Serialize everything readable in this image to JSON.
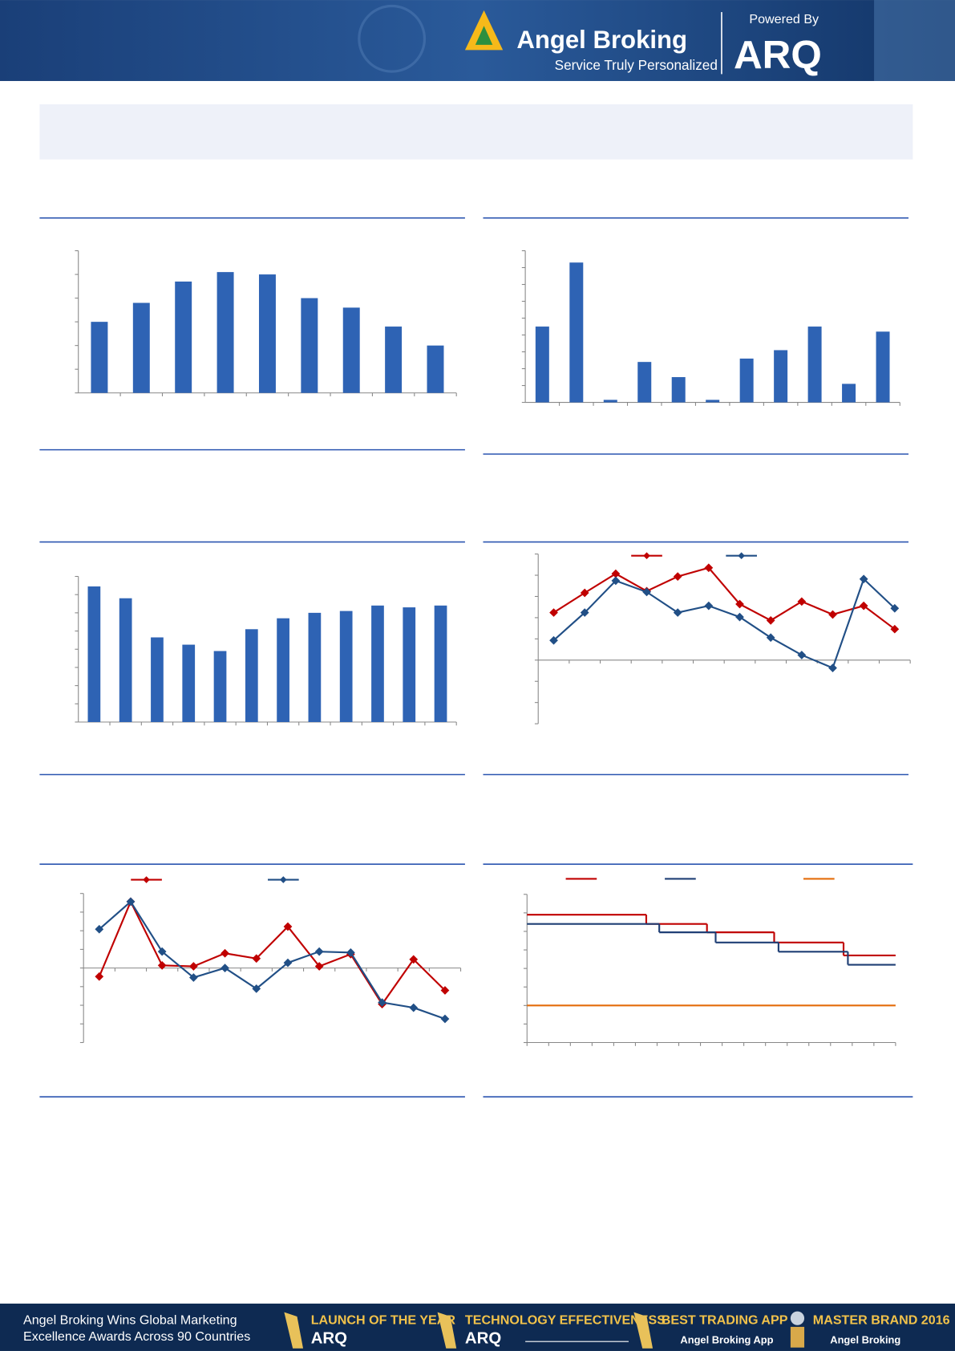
{
  "header": {
    "brand": "Angel Broking",
    "tagline": "Service Truly Personalized",
    "powered": "Powered By",
    "product": "ARQ"
  },
  "footer": {
    "headline": [
      "Angel Broking Wins Global Marketing",
      "Excellence Awards Across 90 Countries"
    ],
    "awards": [
      {
        "title": "LAUNCH OF THE YEAR",
        "brand": "ARQ"
      },
      {
        "title": "TECHNOLOGY EFFECTIVENESS",
        "brand": "ARQ"
      },
      {
        "title": "BEST TRADING APP",
        "brand": "Angel Broking App"
      },
      {
        "title": "MASTER BRAND 2016",
        "brand": "Angel Broking"
      }
    ]
  },
  "chart_data": [
    {
      "type": "bar",
      "categories": [
        null,
        null,
        null,
        null,
        null,
        null,
        null,
        null,
        null
      ],
      "values": [
        3.0,
        3.8,
        4.7,
        5.1,
        5.0,
        4.0,
        3.6,
        2.8,
        2.0
      ],
      "color": "#2e63b4",
      "ylim": [
        0,
        6
      ],
      "yticks": [
        0,
        1,
        2,
        3,
        4,
        5,
        6
      ]
    },
    {
      "type": "bar",
      "categories": [
        null,
        null,
        null,
        null,
        null,
        null,
        null,
        null,
        null,
        null,
        null
      ],
      "values": [
        4.5,
        8.3,
        0.15,
        2.4,
        1.5,
        0.15,
        2.6,
        3.1,
        4.5,
        1.1,
        4.2
      ],
      "color": "#2e63b4",
      "ylim": [
        0,
        9
      ],
      "yticks": [
        0,
        1,
        2,
        3,
        4,
        5,
        6,
        7,
        8,
        9
      ]
    },
    {
      "type": "bar",
      "categories": [
        null,
        null,
        null,
        null,
        null,
        null,
        null,
        null,
        null,
        null,
        null,
        null
      ],
      "values": [
        7.45,
        6.8,
        4.65,
        4.25,
        3.9,
        5.1,
        5.7,
        6.0,
        6.1,
        6.4,
        6.3,
        6.4
      ],
      "color": "#2e63b4",
      "ylim": [
        0,
        8
      ],
      "yticks": [
        0,
        1,
        2,
        3,
        4,
        5,
        6,
        7,
        8
      ]
    },
    {
      "type": "line",
      "categories": [
        null,
        null,
        null,
        null,
        null,
        null,
        null,
        null,
        null,
        null,
        null,
        null
      ],
      "ylim": [
        -3,
        5
      ],
      "yticks": [
        -3,
        -2,
        -1,
        0,
        1,
        2,
        3,
        4,
        5
      ],
      "series": [
        {
          "color": "#c00000",
          "values": [
            2.24,
            3.17,
            4.07,
            3.25,
            3.94,
            4.35,
            2.64,
            1.87,
            2.76,
            2.15,
            2.56,
            1.46
          ]
        },
        {
          "color": "#214f86",
          "values": [
            0.93,
            2.24,
            3.74,
            3.21,
            2.24,
            2.56,
            2.03,
            1.06,
            0.24,
            -0.37,
            3.82,
            2.44
          ]
        }
      ]
    },
    {
      "type": "line",
      "categories": [
        null,
        null,
        null,
        null,
        null,
        null,
        null,
        null,
        null,
        null,
        null,
        null
      ],
      "ylim": [
        -4,
        4
      ],
      "yticks": [
        -4,
        -3,
        -2,
        -1,
        0,
        1,
        2,
        3,
        4
      ],
      "series": [
        {
          "color": "#c00000",
          "values": [
            -0.46,
            3.56,
            0.14,
            0.09,
            0.79,
            0.51,
            2.22,
            0.09,
            0.74,
            -1.94,
            0.46,
            -1.2
          ]
        },
        {
          "color": "#214f86",
          "values": [
            2.08,
            3.56,
            0.88,
            -0.51,
            0,
            -1.11,
            0.28,
            0.88,
            0.83,
            -1.85,
            -2.13,
            -2.73
          ]
        }
      ]
    },
    {
      "type": "step",
      "xlim": [
        0,
        17
      ],
      "xticks": [
        0,
        1,
        2,
        3,
        4,
        5,
        6,
        7,
        8,
        9,
        10,
        11,
        12,
        13,
        14,
        15,
        16,
        17
      ],
      "ylim": [
        0,
        8
      ],
      "yticks": [
        0,
        1,
        2,
        3,
        4,
        5,
        6,
        7,
        8
      ],
      "series": [
        {
          "color": "#c00000",
          "x": [
            0,
            5.5,
            8.3,
            11.4,
            14.6
          ],
          "values": [
            6.9,
            6.4,
            5.95,
            5.4,
            4.7
          ]
        },
        {
          "color": "#1f3f75",
          "x": [
            0,
            6.1,
            8.7,
            11.6,
            14.8
          ],
          "values": [
            6.4,
            5.95,
            5.4,
            4.9,
            4.2
          ]
        },
        {
          "color": "#e46c0a",
          "x": [
            0
          ],
          "values": [
            2
          ]
        }
      ]
    }
  ]
}
